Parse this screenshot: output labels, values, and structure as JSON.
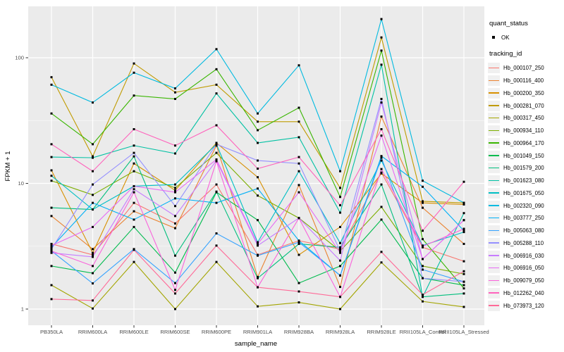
{
  "chart_data": {
    "type": "line",
    "title": "",
    "xlabel": "sample_name",
    "ylabel": "FPKM + 1",
    "y_scale": "log10",
    "ylim": [
      1,
      256
    ],
    "y_ticks": [
      1,
      10,
      100
    ],
    "y_minor_ticks": [
      3.162,
      31.62
    ],
    "grid": "on",
    "panel_bg": "#EBEBEB",
    "grid_color": "#FFFFFF",
    "point_color": "#000000",
    "point_shape": "square",
    "legend_position": "right",
    "categories": [
      "PB350LA",
      "RRIM600LA",
      "RRIM600LE",
      "RRIM600SE",
      "RRIM600PE",
      "RRIM901LA",
      "RRIM928BA",
      "RRIM928LA",
      "RRIM928LE",
      "RRII105LA_Control",
      "RRII105LA_Stressed"
    ],
    "series": [
      {
        "name": "Hb_000107_250",
        "color": "#F8766D",
        "values": [
          3.3,
          2.7,
          7.0,
          4.8,
          9.8,
          2.7,
          3.5,
          3.0,
          12.2,
          3.1,
          2.4
        ]
      },
      {
        "name": "Hb_000116_400",
        "color": "#EA8331",
        "values": [
          5.5,
          3.0,
          6.0,
          4.4,
          20.0,
          1.8,
          9.7,
          1.5,
          34.0,
          6.4,
          3.3
        ]
      },
      {
        "name": "Hb_000200_350",
        "color": "#D89000",
        "values": [
          12.7,
          2.8,
          14.4,
          8.8,
          21.0,
          11.2,
          2.7,
          4.5,
          12.0,
          7.0,
          6.8
        ]
      },
      {
        "name": "Hb_000281_070",
        "color": "#C09B00",
        "values": [
          70,
          16.4,
          90,
          53,
          61,
          31,
          31,
          9.2,
          145,
          7.2,
          7.0
        ]
      },
      {
        "name": "Hb_000317_450",
        "color": "#A3A500",
        "values": [
          1.55,
          1.01,
          2.37,
          1.0,
          2.37,
          1.05,
          1.13,
          1.0,
          2.35,
          1.15,
          1.04
        ]
      },
      {
        "name": "Hb_000934_110",
        "color": "#7CAE00",
        "values": [
          10.5,
          8.1,
          12.5,
          9.2,
          17.5,
          8.0,
          5.3,
          2.9,
          6.5,
          2.2,
          1.9
        ]
      },
      {
        "name": "Hb_000964_170",
        "color": "#39B600",
        "values": [
          36,
          20.5,
          50,
          47,
          81,
          26.5,
          40,
          7.8,
          114,
          3.6,
          1.46
        ]
      },
      {
        "name": "Hb_001049_150",
        "color": "#00BB4E",
        "values": [
          2.2,
          1.93,
          4.5,
          1.95,
          8.5,
          5.1,
          1.61,
          2.2,
          5.15,
          1.76,
          1.55
        ]
      },
      {
        "name": "Hb_001579_200",
        "color": "#00BF7D",
        "values": [
          6.4,
          6.2,
          16.4,
          2.66,
          8.6,
          1.76,
          3.3,
          3.1,
          9.8,
          1.25,
          1.33
        ]
      },
      {
        "name": "Hb_001623_080",
        "color": "#00C1A3",
        "values": [
          16.2,
          16.0,
          20.0,
          17.3,
          52,
          21,
          23.3,
          5.85,
          88,
          1.25,
          5.8
        ]
      },
      {
        "name": "Hb_001675_050",
        "color": "#00BFC4",
        "values": [
          11.5,
          6.2,
          9.5,
          9.8,
          20.5,
          3.4,
          12.5,
          3.35,
          15.2,
          3.2,
          4.1
        ]
      },
      {
        "name": "Hb_002320_090",
        "color": "#00BAE0",
        "values": [
          61,
          44,
          76,
          57,
          117,
          36,
          87,
          12.5,
          203,
          10.5,
          7.0
        ]
      },
      {
        "name": "Hb_003777_250",
        "color": "#00B0F6",
        "values": [
          3.1,
          7.0,
          5.15,
          7.6,
          7.0,
          9.1,
          3.5,
          1.85,
          16.5,
          9.4,
          4.2
        ]
      },
      {
        "name": "Hb_005063_080",
        "color": "#35A2FF",
        "values": [
          2.9,
          1.6,
          3.0,
          1.61,
          4.0,
          2.66,
          3.4,
          1.85,
          16.0,
          2.06,
          1.65
        ]
      },
      {
        "name": "Hb_005288_110",
        "color": "#9590FF",
        "values": [
          3.0,
          9.8,
          17.5,
          6.6,
          20.5,
          15.2,
          14.4,
          2.9,
          47,
          1.76,
          1.65
        ]
      },
      {
        "name": "Hb_006916_030",
        "color": "#C77CFF",
        "values": [
          2.8,
          2.6,
          9.0,
          5.5,
          15.2,
          3.2,
          5.3,
          2.43,
          44,
          2.5,
          5.1
        ]
      },
      {
        "name": "Hb_006916_050",
        "color": "#E76BF3",
        "values": [
          3.2,
          4.5,
          9.5,
          8.5,
          15.5,
          3.3,
          8.5,
          2.8,
          24,
          2.5,
          5.1
        ]
      },
      {
        "name": "Hb_009079_050",
        "color": "#FA62DB",
        "values": [
          2.9,
          2.2,
          8.5,
          1.42,
          15.0,
          1.49,
          5.3,
          1.25,
          13.0,
          3.15,
          4.35
        ]
      },
      {
        "name": "Hb_012262_040",
        "color": "#FF62BC",
        "values": [
          20.5,
          12.5,
          27,
          20,
          29,
          13.1,
          16.2,
          6.7,
          27,
          4.2,
          10.3
        ]
      },
      {
        "name": "Hb_073973_120",
        "color": "#FF6A98",
        "values": [
          1.2,
          1.17,
          2.96,
          1.33,
          3.2,
          1.49,
          1.38,
          1.25,
          2.85,
          1.3,
          2.0
        ]
      }
    ]
  },
  "legend": {
    "quant_title": "quant_status",
    "quant_items": [
      {
        "label": "OK",
        "glyph": "black-point"
      }
    ],
    "tracking_title": "tracking_id"
  }
}
